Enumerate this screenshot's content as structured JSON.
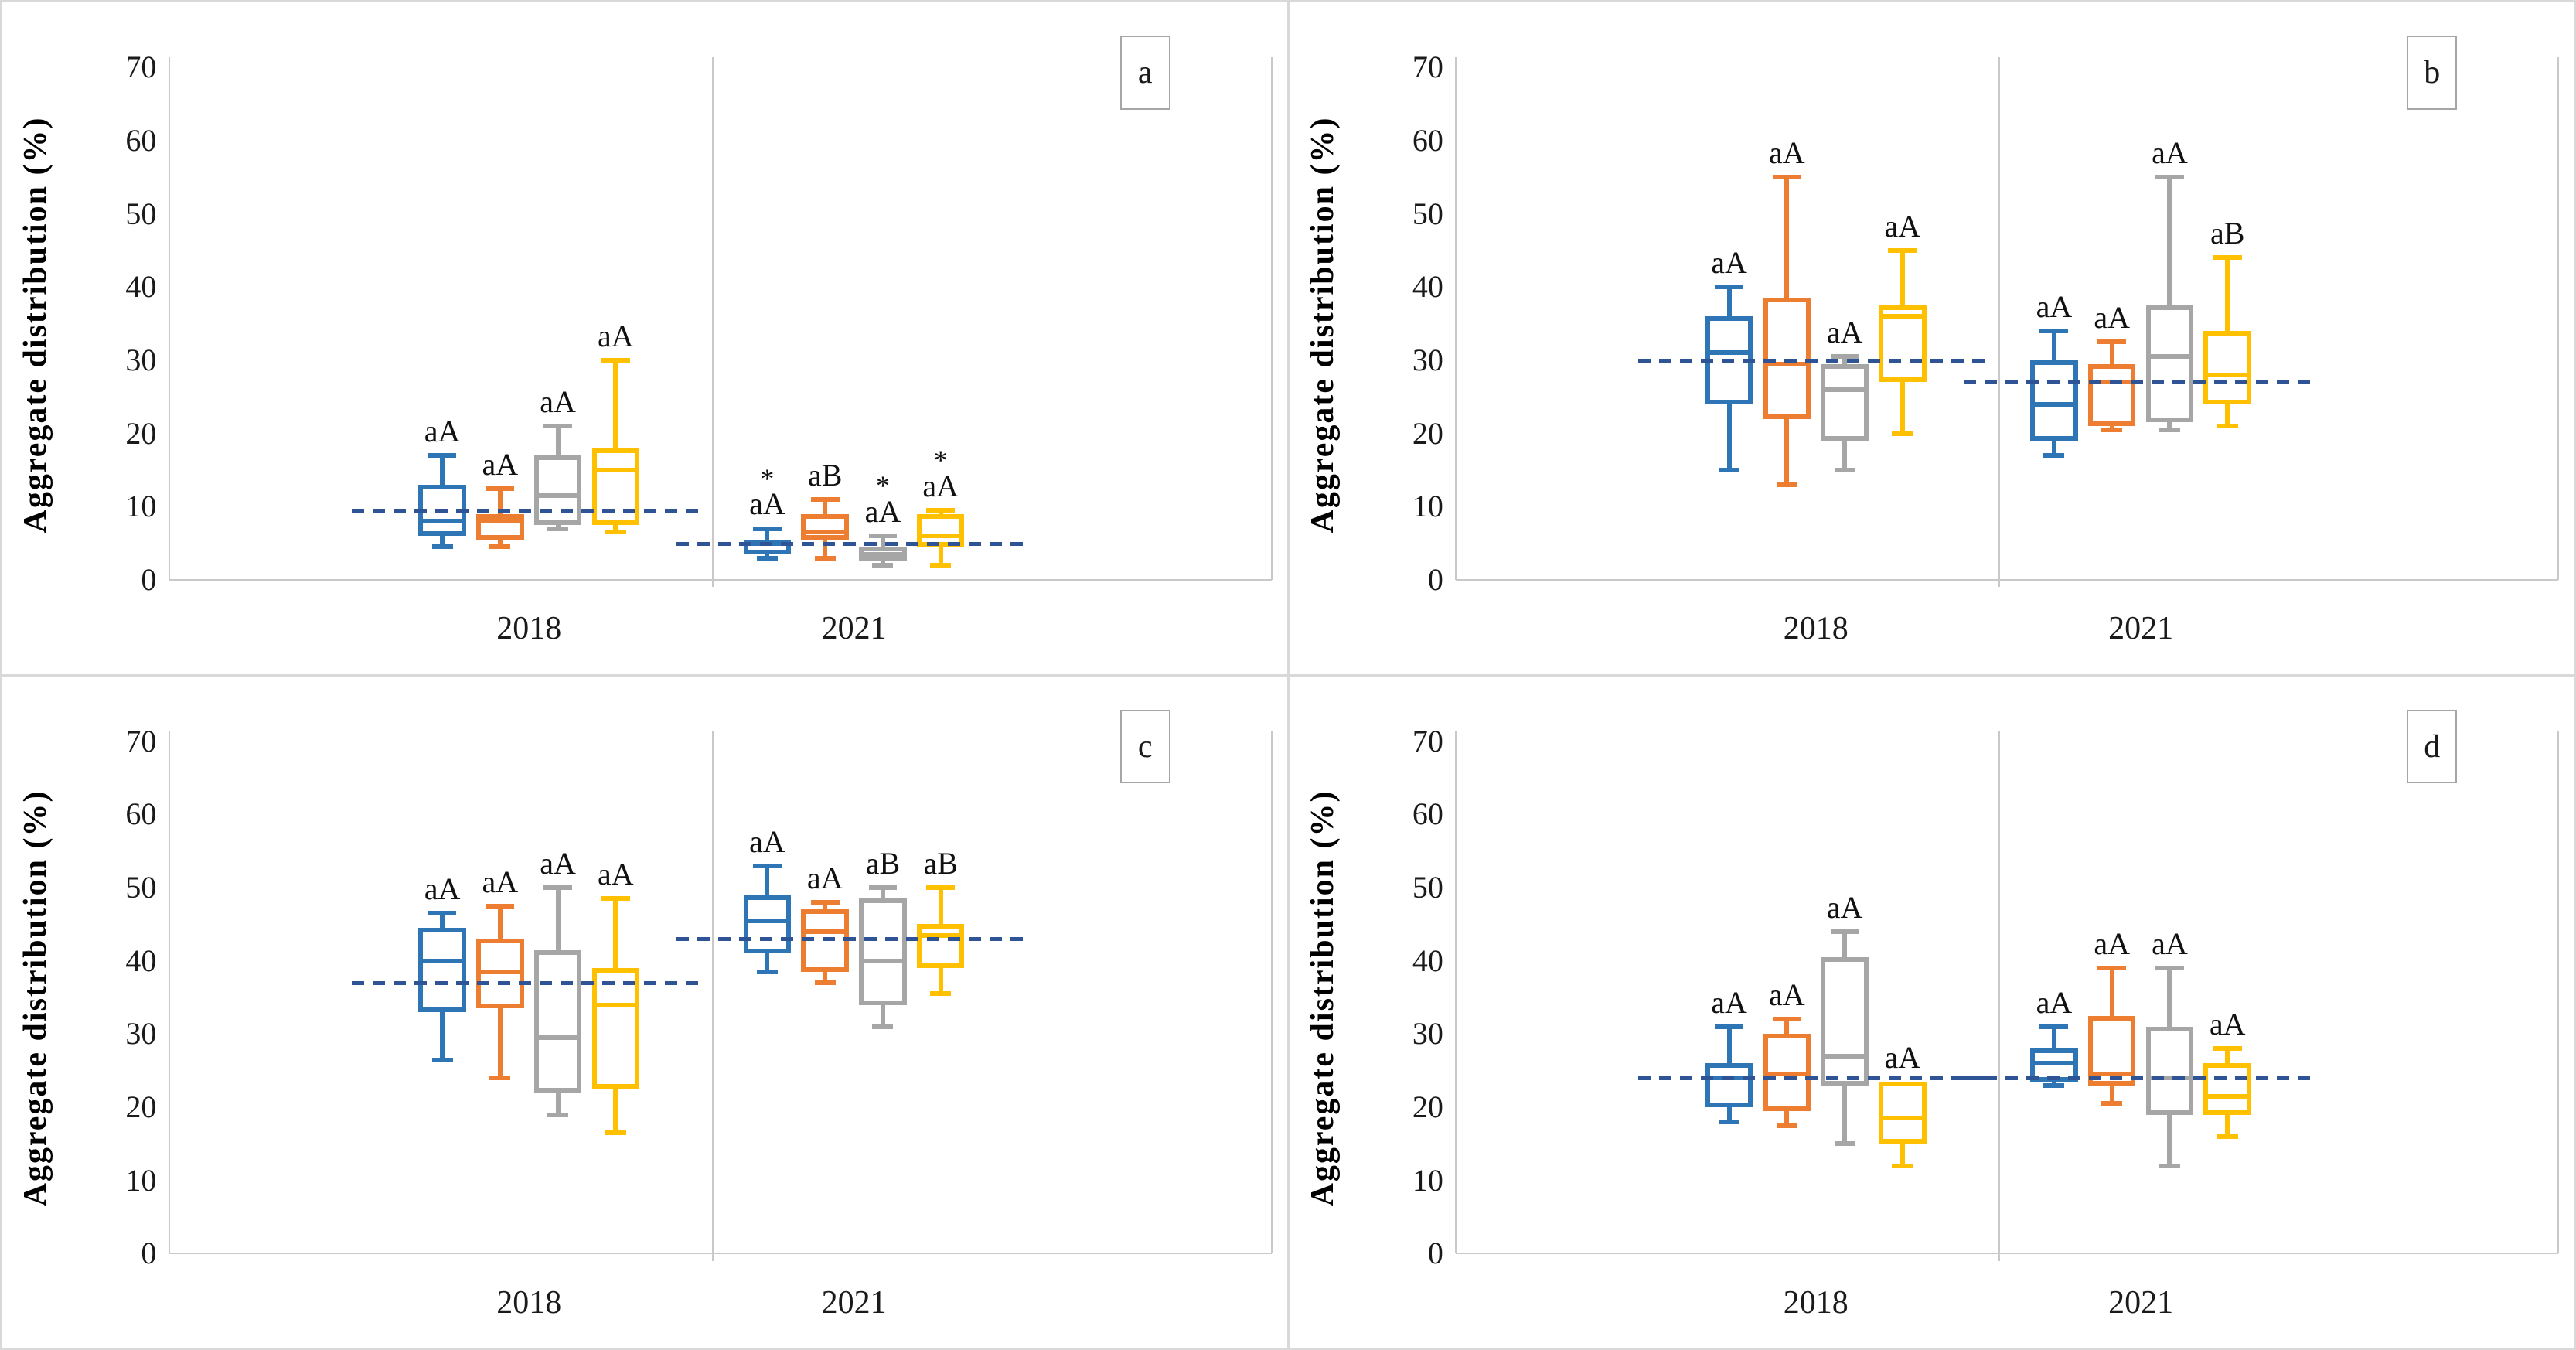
{
  "figure": {
    "type": "boxplot-grid",
    "ylabel": "Aggregate distribution (%)",
    "x_groups": [
      "2018",
      "2021"
    ],
    "yticks": [
      0,
      10,
      20,
      30,
      40,
      50,
      60,
      70
    ],
    "ylim": [
      0,
      70
    ],
    "colors": {
      "series": {
        "blue": "#2E75B6",
        "orange": "#ED7D31",
        "gray": "#A6A6A6",
        "yellow": "#FFC000"
      },
      "reference_line": "#2F5496",
      "axis_line": "#C9C9C9",
      "text": "#1A1A1A"
    },
    "series_order": [
      "blue",
      "orange",
      "gray",
      "yellow"
    ]
  },
  "chart_data": [
    {
      "panel_letter": "a",
      "type": "boxplot",
      "reference_lines": [
        {
          "group": "2018",
          "value": 9.5
        },
        {
          "group": "2021",
          "value": 5
        }
      ],
      "boxes": [
        {
          "group": "2018",
          "series": "blue",
          "whisker_low": 4.5,
          "q1": 6,
          "median": 8,
          "q3": 13,
          "whisker_high": 17,
          "label": "aA",
          "starred": false
        },
        {
          "group": "2018",
          "series": "orange",
          "whisker_low": 4.5,
          "q1": 5.5,
          "median": 8,
          "q3": 9,
          "whisker_high": 12.5,
          "label": "aA",
          "starred": false
        },
        {
          "group": "2018",
          "series": "gray",
          "whisker_low": 7,
          "q1": 7.5,
          "median": 11.5,
          "q3": 17,
          "whisker_high": 21,
          "label": "aA",
          "starred": false
        },
        {
          "group": "2018",
          "series": "yellow",
          "whisker_low": 6.5,
          "q1": 7.5,
          "median": 15,
          "q3": 18,
          "whisker_high": 30,
          "label": "aA",
          "starred": false
        },
        {
          "group": "2021",
          "series": "blue",
          "whisker_low": 3,
          "q1": 3.5,
          "median": 5,
          "q3": 5.5,
          "whisker_high": 7,
          "label": "aA",
          "starred": true
        },
        {
          "group": "2021",
          "series": "orange",
          "whisker_low": 3,
          "q1": 5.5,
          "median": 6.5,
          "q3": 9,
          "whisker_high": 11,
          "label": "aB",
          "starred": false
        },
        {
          "group": "2021",
          "series": "gray",
          "whisker_low": 2,
          "q1": 2.5,
          "median": 3.5,
          "q3": 4.5,
          "whisker_high": 6,
          "label": "aA",
          "starred": true
        },
        {
          "group": "2021",
          "series": "yellow",
          "whisker_low": 2,
          "q1": 4.5,
          "median": 6,
          "q3": 9,
          "whisker_high": 9.5,
          "label": "aA",
          "starred": true
        }
      ]
    },
    {
      "panel_letter": "b",
      "type": "boxplot",
      "reference_lines": [
        {
          "group": "2018",
          "value": 30
        },
        {
          "group": "2021",
          "value": 27
        }
      ],
      "boxes": [
        {
          "group": "2018",
          "series": "blue",
          "whisker_low": 15,
          "q1": 24,
          "median": 31,
          "q3": 36,
          "whisker_high": 40,
          "label": "aA",
          "starred": false
        },
        {
          "group": "2018",
          "series": "orange",
          "whisker_low": 13,
          "q1": 22,
          "median": 29.5,
          "q3": 38.5,
          "whisker_high": 55,
          "label": "aA",
          "starred": false
        },
        {
          "group": "2018",
          "series": "gray",
          "whisker_low": 15,
          "q1": 19,
          "median": 26,
          "q3": 29.5,
          "whisker_high": 30.5,
          "label": "aA",
          "starred": false
        },
        {
          "group": "2018",
          "series": "yellow",
          "whisker_low": 20,
          "q1": 27,
          "median": 36,
          "q3": 37.5,
          "whisker_high": 45,
          "label": "aA",
          "starred": false
        },
        {
          "group": "2021",
          "series": "blue",
          "whisker_low": 17,
          "q1": 19,
          "median": 24,
          "q3": 30,
          "whisker_high": 34,
          "label": "aA",
          "starred": false
        },
        {
          "group": "2021",
          "series": "orange",
          "whisker_low": 20.5,
          "q1": 21,
          "median": 27,
          "q3": 29.5,
          "whisker_high": 32.5,
          "label": "aA",
          "starred": false
        },
        {
          "group": "2021",
          "series": "gray",
          "whisker_low": 20.5,
          "q1": 21.5,
          "median": 30.5,
          "q3": 37.5,
          "whisker_high": 55,
          "label": "aA",
          "starred": false
        },
        {
          "group": "2021",
          "series": "yellow",
          "whisker_low": 21,
          "q1": 24,
          "median": 28,
          "q3": 34,
          "whisker_high": 44,
          "label": "aB",
          "starred": false
        }
      ]
    },
    {
      "panel_letter": "c",
      "type": "boxplot",
      "reference_lines": [
        {
          "group": "2018",
          "value": 37
        },
        {
          "group": "2021",
          "value": 43
        }
      ],
      "boxes": [
        {
          "group": "2018",
          "series": "blue",
          "whisker_low": 26.5,
          "q1": 33,
          "median": 40,
          "q3": 44.5,
          "whisker_high": 46.5,
          "label": "aA",
          "starred": false
        },
        {
          "group": "2018",
          "series": "orange",
          "whisker_low": 24,
          "q1": 33.5,
          "median": 38.5,
          "q3": 43,
          "whisker_high": 47.5,
          "label": "aA",
          "starred": false
        },
        {
          "group": "2018",
          "series": "gray",
          "whisker_low": 19,
          "q1": 22,
          "median": 29.5,
          "q3": 41.5,
          "whisker_high": 50,
          "label": "aA",
          "starred": false
        },
        {
          "group": "2018",
          "series": "yellow",
          "whisker_low": 16.5,
          "q1": 22.5,
          "median": 34,
          "q3": 39,
          "whisker_high": 48.5,
          "label": "aA",
          "starred": false
        },
        {
          "group": "2021",
          "series": "blue",
          "whisker_low": 38.5,
          "q1": 41,
          "median": 45.5,
          "q3": 49,
          "whisker_high": 53,
          "label": "aA",
          "starred": false
        },
        {
          "group": "2021",
          "series": "orange",
          "whisker_low": 37,
          "q1": 38.5,
          "median": 44,
          "q3": 47,
          "whisker_high": 48,
          "label": "aA",
          "starred": false
        },
        {
          "group": "2021",
          "series": "gray",
          "whisker_low": 31,
          "q1": 34,
          "median": 40,
          "q3": 48.5,
          "whisker_high": 50,
          "label": "aB",
          "starred": false
        },
        {
          "group": "2021",
          "series": "yellow",
          "whisker_low": 35.5,
          "q1": 39,
          "median": 43.5,
          "q3": 45,
          "whisker_high": 50,
          "label": "aB",
          "starred": false
        }
      ]
    },
    {
      "panel_letter": "d",
      "type": "boxplot",
      "reference_lines": [
        {
          "group": "2018",
          "value": 24
        },
        {
          "group": "2021",
          "value": 24
        }
      ],
      "boxes": [
        {
          "group": "2018",
          "series": "blue",
          "whisker_low": 18,
          "q1": 20,
          "median": 24,
          "q3": 26,
          "whisker_high": 31,
          "label": "aA",
          "starred": false
        },
        {
          "group": "2018",
          "series": "orange",
          "whisker_low": 17.5,
          "q1": 19.5,
          "median": 24.5,
          "q3": 30,
          "whisker_high": 32,
          "label": "aA",
          "starred": false
        },
        {
          "group": "2018",
          "series": "gray",
          "whisker_low": 15,
          "q1": 23,
          "median": 27,
          "q3": 40.5,
          "whisker_high": 44,
          "label": "aA",
          "starred": false
        },
        {
          "group": "2018",
          "series": "yellow",
          "whisker_low": 12,
          "q1": 15,
          "median": 18.5,
          "q3": 23.5,
          "whisker_high": 23.5,
          "label": "aA",
          "starred": false
        },
        {
          "group": "2021",
          "series": "blue",
          "whisker_low": 23,
          "q1": 23.5,
          "median": 26,
          "q3": 28,
          "whisker_high": 31,
          "label": "aA",
          "starred": false
        },
        {
          "group": "2021",
          "series": "orange",
          "whisker_low": 20.5,
          "q1": 23,
          "median": 24.5,
          "q3": 32.5,
          "whisker_high": 39,
          "label": "aA",
          "starred": false
        },
        {
          "group": "2021",
          "series": "gray",
          "whisker_low": 12,
          "q1": 19,
          "median": 24,
          "q3": 31,
          "whisker_high": 39,
          "label": "aA",
          "starred": false
        },
        {
          "group": "2021",
          "series": "yellow",
          "whisker_low": 16,
          "q1": 19,
          "median": 21.5,
          "q3": 26,
          "whisker_high": 28,
          "label": "aA",
          "starred": false
        }
      ]
    }
  ]
}
